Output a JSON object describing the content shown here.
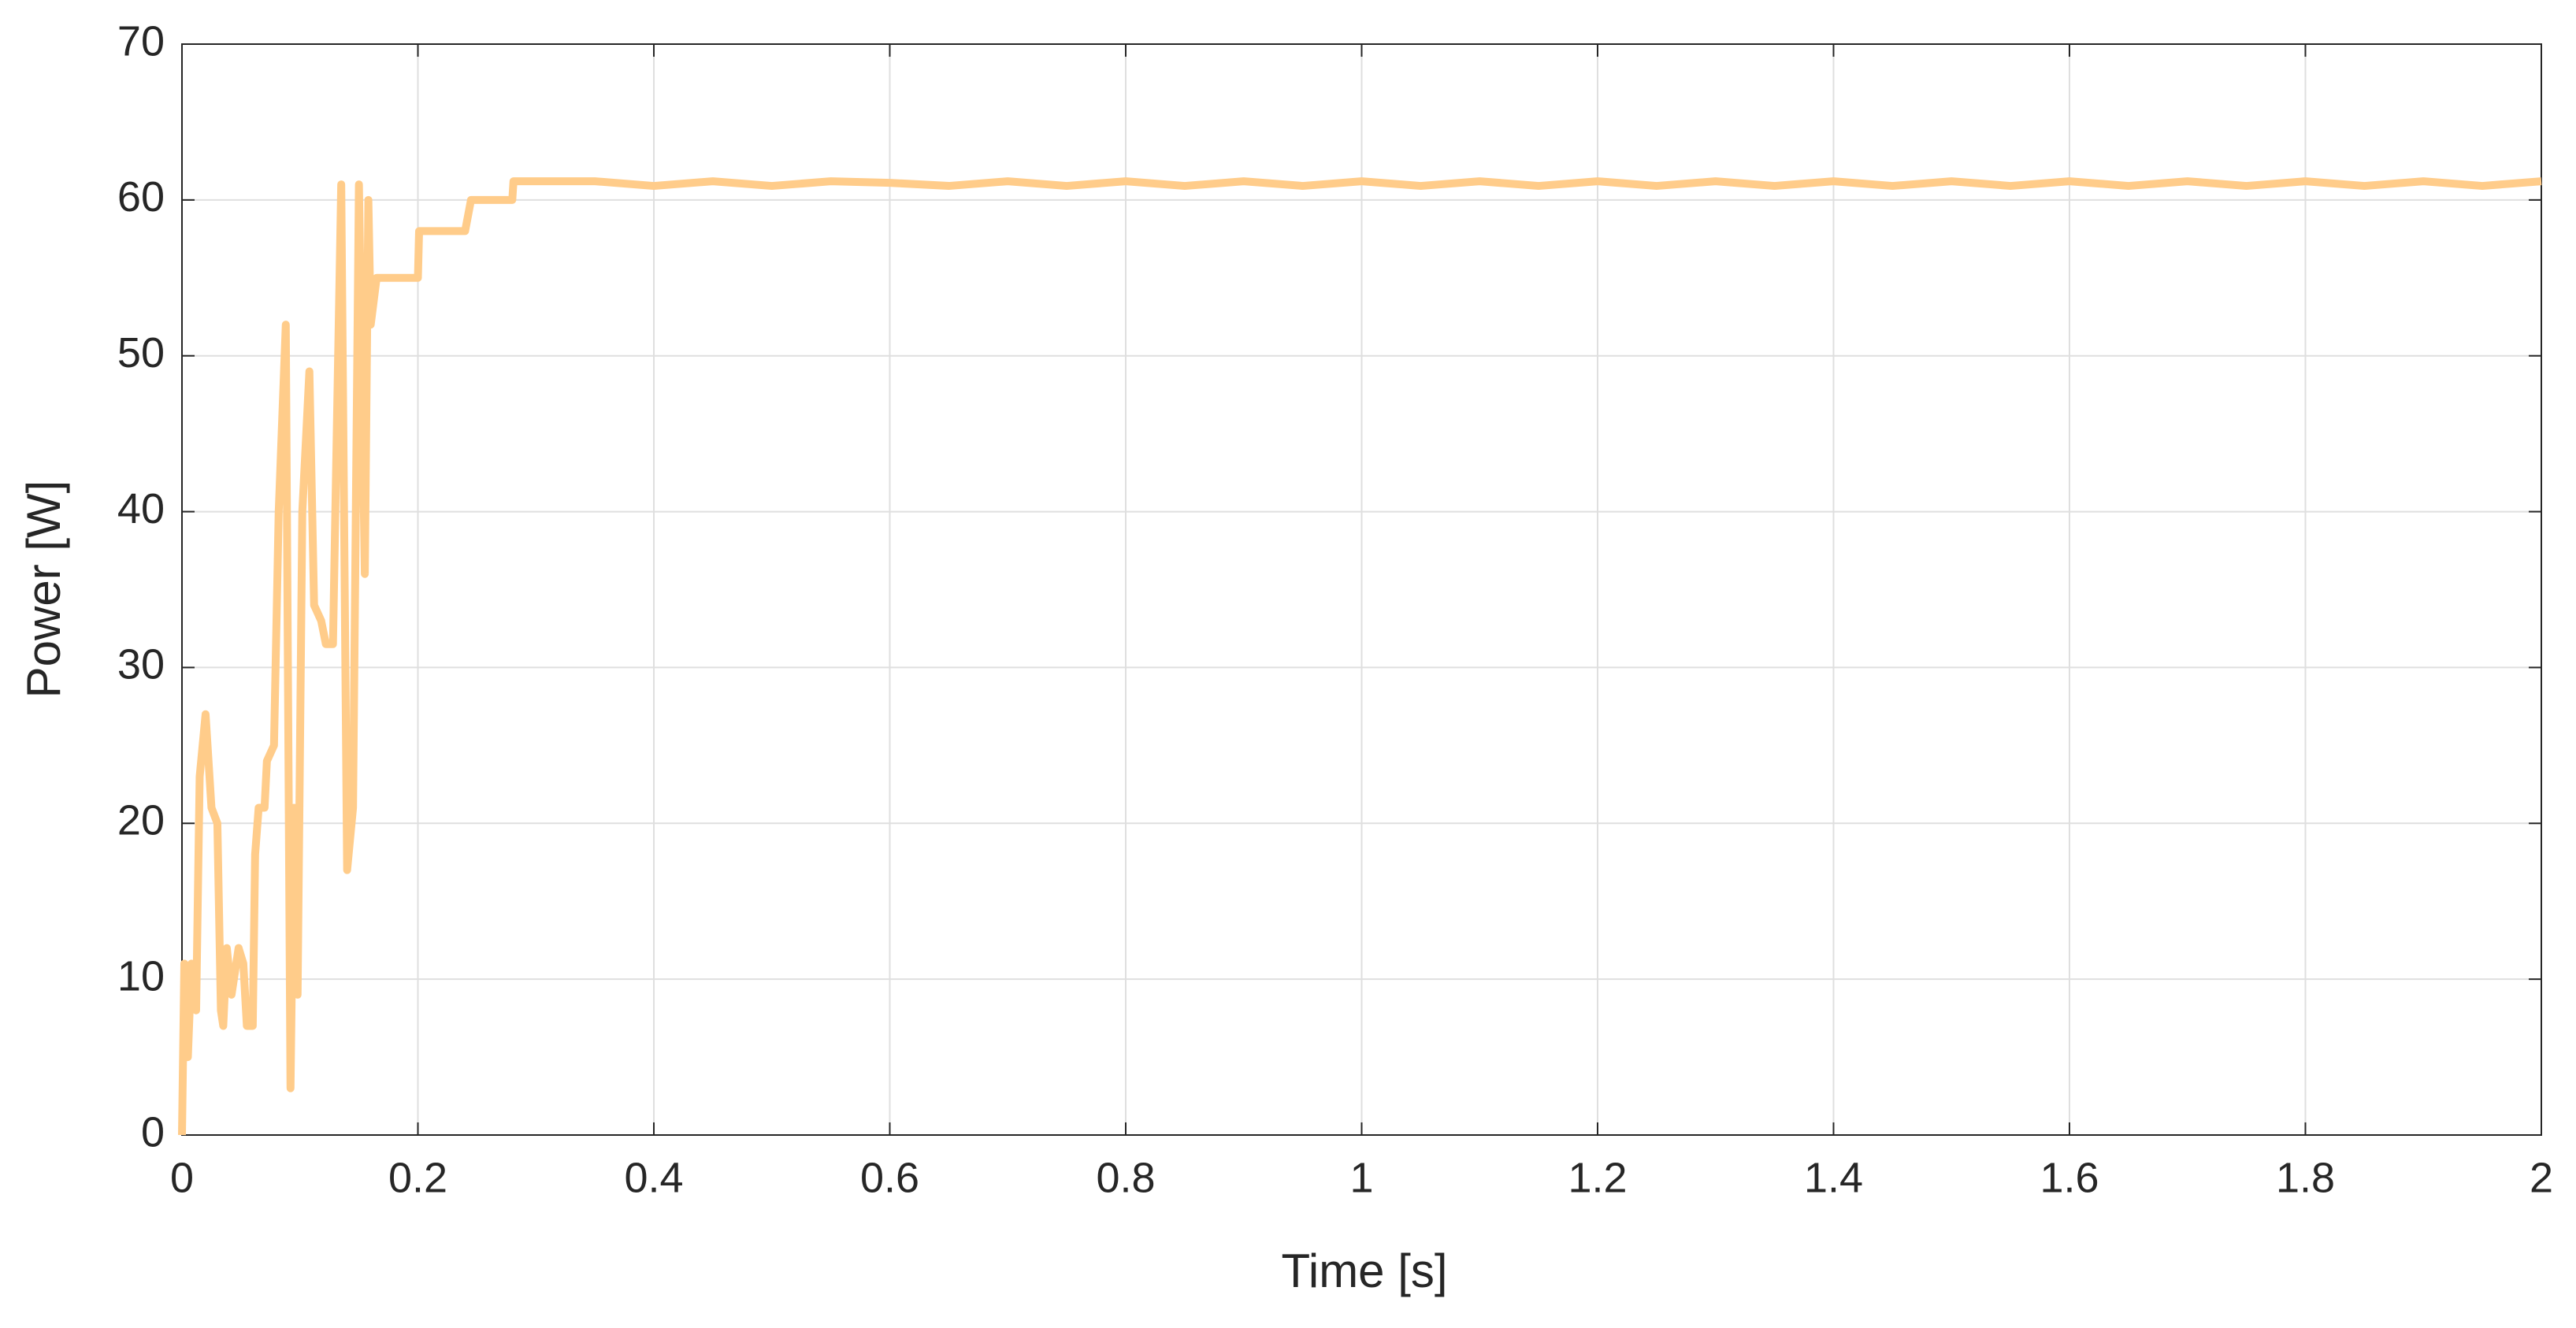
{
  "chart_data": {
    "type": "line",
    "xlabel": "Time [s]",
    "ylabel": "Power [W]",
    "x": [
      0,
      0.002,
      0.005,
      0.008,
      0.012,
      0.015,
      0.02,
      0.025,
      0.03,
      0.033,
      0.035,
      0.038,
      0.042,
      0.048,
      0.052,
      0.055,
      0.06,
      0.062,
      0.065,
      0.07,
      0.072,
      0.078,
      0.082,
      0.088,
      0.092,
      0.095,
      0.098,
      0.102,
      0.108,
      0.112,
      0.118,
      0.122,
      0.128,
      0.135,
      0.14,
      0.145,
      0.15,
      0.155,
      0.158,
      0.16,
      0.165,
      0.175,
      0.2,
      0.201,
      0.24,
      0.245,
      0.28,
      0.281,
      0.35,
      0.4,
      0.45,
      0.5,
      0.55,
      0.6,
      0.65,
      0.7,
      0.75,
      0.8,
      0.85,
      0.9,
      0.95,
      1.0,
      1.05,
      1.1,
      1.15,
      1.2,
      1.25,
      1.3,
      1.35,
      1.4,
      1.45,
      1.5,
      1.55,
      1.6,
      1.65,
      1.7,
      1.75,
      1.8,
      1.85,
      1.9,
      1.95,
      2.0
    ],
    "values": [
      0,
      11,
      5,
      11,
      8,
      23,
      27,
      21,
      20,
      8,
      7,
      12,
      9,
      12,
      11,
      7,
      7,
      18,
      21,
      21,
      24,
      25,
      40,
      52,
      3,
      21,
      9,
      40,
      49,
      34,
      33,
      31.5,
      31.5,
      61,
      17,
      21,
      61,
      36,
      60,
      52,
      55,
      55,
      55,
      58,
      58,
      60,
      60,
      61.2,
      61.2,
      60.9,
      61.2,
      60.9,
      61.2,
      61.1,
      60.9,
      61.2,
      60.9,
      61.2,
      60.9,
      61.2,
      60.9,
      61.2,
      60.9,
      61.2,
      60.9,
      61.2,
      60.9,
      61.2,
      60.9,
      61.2,
      60.9,
      61.2,
      60.9,
      61.2,
      60.9,
      61.2,
      60.9,
      61.2,
      60.9,
      61.2,
      60.9,
      61.2
    ],
    "color": "#ffcc8a",
    "xlim": [
      0,
      2
    ],
    "xticks": [
      0,
      0.2,
      0.4,
      0.6,
      0.8,
      1,
      1.2,
      1.4,
      1.6,
      1.8,
      2
    ],
    "ylim": [
      0,
      70
    ],
    "yticks": [
      0,
      10,
      20,
      30,
      40,
      50,
      60,
      70
    ],
    "grid": true
  }
}
